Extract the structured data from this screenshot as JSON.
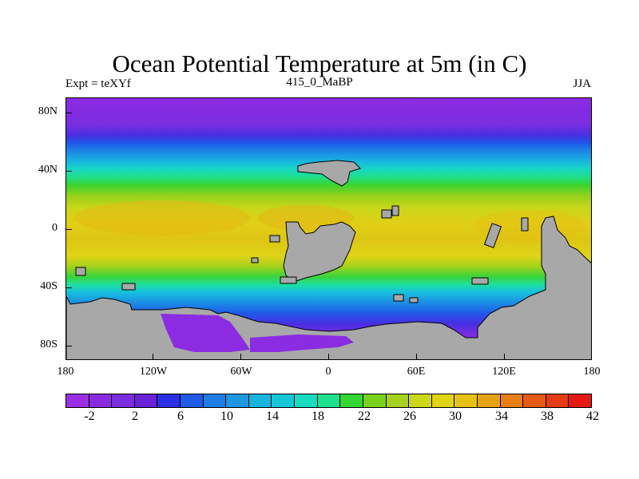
{
  "title": "Ocean Potential Temperature at 5m (in C)",
  "subtitle_left": "Expt = teXYf",
  "subtitle_center": "415_0_MaBP",
  "subtitle_right": "JJA",
  "y_ticks": [
    "80N",
    "40N",
    "0",
    "40S",
    "80S"
  ],
  "x_ticks": [
    "180",
    "120W",
    "60W",
    "0",
    "60E",
    "120E",
    "180"
  ],
  "colorbar_labels": [
    "-2",
    "2",
    "6",
    "10",
    "14",
    "18",
    "22",
    "26",
    "30",
    "34",
    "38",
    "42"
  ],
  "colors": {
    "land": "#a8a8a8",
    "palette": [
      "#9a2fe6",
      "#8a2be2",
      "#7b2ee0",
      "#6a22d6",
      "#2b2fe6",
      "#1f5ae8",
      "#1e7ce6",
      "#1c97e0",
      "#18b3df",
      "#16c6d8",
      "#18dcc0",
      "#1ee08e",
      "#33d633",
      "#7ad21e",
      "#a6d11c",
      "#ccd61a",
      "#dfd416",
      "#e6c114",
      "#e6a114",
      "#e67e14",
      "#e65a14",
      "#e63c14",
      "#e61a14"
    ]
  }
}
